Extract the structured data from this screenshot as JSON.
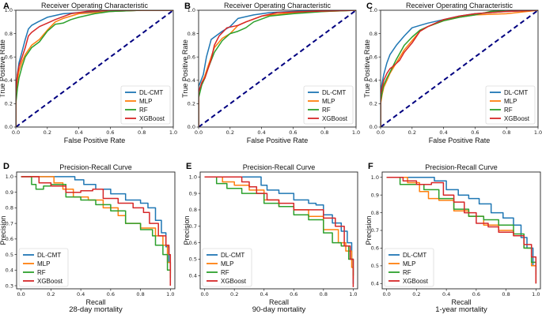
{
  "colors": {
    "DL-CMT": "#1f77b4",
    "MLP": "#ff7f0e",
    "RF": "#2ca02c",
    "XGBoost": "#d62728",
    "diagonal": "#000080"
  },
  "chart_data": [
    {
      "panel": "A",
      "type": "line",
      "title": "Receiver Operating Characteristic",
      "xlabel": "False Positive Rate",
      "ylabel": "True Positive Rate",
      "xlim": [
        0,
        1
      ],
      "ylim": [
        0,
        1
      ],
      "xticks": [
        "0.0",
        "0.2",
        "0.4",
        "0.6",
        "0.8",
        "1.0"
      ],
      "yticks": [
        "0.0",
        "0.2",
        "0.4",
        "0.6",
        "0.8",
        "1.0"
      ],
      "legend": [
        "DL-CMT",
        "MLP",
        "RF",
        "XGBoost"
      ],
      "legend_position": "lower-right",
      "diagonal": true,
      "series": [
        {
          "name": "DL-CMT",
          "x": [
            0,
            0,
            0.01,
            0.02,
            0.04,
            0.06,
            0.08,
            0.1,
            0.14,
            0.2,
            0.3,
            0.4,
            0.6,
            0.8,
            1
          ],
          "y": [
            0,
            0.3,
            0.45,
            0.55,
            0.65,
            0.75,
            0.84,
            0.87,
            0.9,
            0.94,
            0.97,
            0.98,
            0.99,
            1,
            1
          ]
        },
        {
          "name": "MLP",
          "x": [
            0,
            0,
            0.01,
            0.02,
            0.04,
            0.06,
            0.1,
            0.15,
            0.2,
            0.25,
            0.3,
            0.4,
            0.6,
            0.8,
            1
          ],
          "y": [
            0,
            0.25,
            0.4,
            0.48,
            0.56,
            0.62,
            0.7,
            0.75,
            0.83,
            0.9,
            0.93,
            0.97,
            0.99,
            1,
            1
          ]
        },
        {
          "name": "RF",
          "x": [
            0,
            0,
            0.01,
            0.02,
            0.04,
            0.06,
            0.1,
            0.15,
            0.2,
            0.25,
            0.3,
            0.35,
            0.4,
            0.5,
            0.6,
            0.8,
            1
          ],
          "y": [
            0,
            0.2,
            0.33,
            0.42,
            0.52,
            0.6,
            0.68,
            0.73,
            0.82,
            0.88,
            0.89,
            0.92,
            0.94,
            0.97,
            0.99,
            1,
            1
          ]
        },
        {
          "name": "XGBoost",
          "x": [
            0,
            0,
            0.01,
            0.02,
            0.04,
            0.06,
            0.08,
            0.1,
            0.15,
            0.2,
            0.25,
            0.35,
            0.45,
            0.6,
            0.8,
            1
          ],
          "y": [
            0,
            0.3,
            0.45,
            0.52,
            0.6,
            0.68,
            0.78,
            0.81,
            0.86,
            0.89,
            0.92,
            0.97,
            0.99,
            1,
            1,
            1
          ]
        }
      ]
    },
    {
      "panel": "B",
      "type": "line",
      "title": "Receiver Operating Characteristic",
      "xlabel": "False Positive Rate",
      "ylabel": "True Positive Rate",
      "xlim": [
        0,
        1
      ],
      "ylim": [
        0,
        1
      ],
      "xticks": [
        "0.0",
        "0.2",
        "0.4",
        "0.6",
        "0.8",
        "1.0"
      ],
      "yticks": [
        "0.0",
        "0.2",
        "0.4",
        "0.6",
        "0.8",
        "1.0"
      ],
      "legend": [
        "DL-CMT",
        "MLP",
        "RF",
        "XGBoost"
      ],
      "legend_position": "lower-right",
      "diagonal": true,
      "series": [
        {
          "name": "DL-CMT",
          "x": [
            0,
            0,
            0.01,
            0.03,
            0.05,
            0.08,
            0.1,
            0.15,
            0.2,
            0.25,
            0.35,
            0.45,
            0.6,
            0.8,
            1
          ],
          "y": [
            0,
            0.35,
            0.38,
            0.45,
            0.6,
            0.75,
            0.77,
            0.82,
            0.86,
            0.93,
            0.96,
            0.98,
            0.99,
            1,
            1
          ]
        },
        {
          "name": "MLP",
          "x": [
            0,
            0,
            0.02,
            0.04,
            0.06,
            0.08,
            0.1,
            0.15,
            0.2,
            0.25,
            0.3,
            0.4,
            0.6,
            0.8,
            1
          ],
          "y": [
            0,
            0.3,
            0.38,
            0.44,
            0.52,
            0.6,
            0.68,
            0.76,
            0.8,
            0.87,
            0.9,
            0.95,
            0.98,
            0.99,
            1
          ]
        },
        {
          "name": "RF",
          "x": [
            0,
            0,
            0.02,
            0.04,
            0.06,
            0.08,
            0.1,
            0.15,
            0.2,
            0.25,
            0.3,
            0.35,
            0.45,
            0.6,
            0.8,
            1
          ],
          "y": [
            0,
            0.25,
            0.36,
            0.42,
            0.5,
            0.57,
            0.64,
            0.74,
            0.8,
            0.82,
            0.85,
            0.9,
            0.95,
            0.97,
            0.99,
            1
          ]
        },
        {
          "name": "XGBoost",
          "x": [
            0,
            0,
            0.02,
            0.04,
            0.06,
            0.08,
            0.1,
            0.13,
            0.18,
            0.25,
            0.3,
            0.4,
            0.5,
            0.7,
            1
          ],
          "y": [
            0,
            0.3,
            0.38,
            0.42,
            0.5,
            0.58,
            0.7,
            0.78,
            0.85,
            0.87,
            0.9,
            0.95,
            0.98,
            0.99,
            1
          ]
        }
      ]
    },
    {
      "panel": "C",
      "type": "line",
      "title": "Receiver Operating Characteristic",
      "xlabel": "False Positive Rate",
      "ylabel": "True Positive Rate",
      "xlim": [
        0,
        1
      ],
      "ylim": [
        0,
        1
      ],
      "xticks": [
        "0.0",
        "0.2",
        "0.4",
        "0.6",
        "0.8",
        "1.0"
      ],
      "yticks": [
        "0.0",
        "0.2",
        "0.4",
        "0.6",
        "0.8",
        "1.0"
      ],
      "legend": [
        "DL-CMT",
        "MLP",
        "RF",
        "XGBoost"
      ],
      "legend_position": "lower-right",
      "diagonal": true,
      "series": [
        {
          "name": "DL-CMT",
          "x": [
            0,
            0,
            0.01,
            0.02,
            0.04,
            0.06,
            0.08,
            0.1,
            0.15,
            0.2,
            0.25,
            0.3,
            0.4,
            0.5,
            0.6,
            0.8,
            1
          ],
          "y": [
            0,
            0.3,
            0.38,
            0.45,
            0.55,
            0.62,
            0.66,
            0.7,
            0.78,
            0.85,
            0.87,
            0.89,
            0.92,
            0.95,
            0.97,
            0.99,
            1
          ]
        },
        {
          "name": "MLP",
          "x": [
            0,
            0,
            0.01,
            0.02,
            0.04,
            0.06,
            0.1,
            0.15,
            0.2,
            0.25,
            0.3,
            0.4,
            0.5,
            0.6,
            0.8,
            1
          ],
          "y": [
            0,
            0.2,
            0.28,
            0.34,
            0.4,
            0.46,
            0.55,
            0.66,
            0.74,
            0.82,
            0.86,
            0.91,
            0.94,
            0.96,
            0.97,
            1
          ]
        },
        {
          "name": "RF",
          "x": [
            0,
            0,
            0.01,
            0.02,
            0.04,
            0.06,
            0.1,
            0.15,
            0.2,
            0.25,
            0.3,
            0.4,
            0.5,
            0.6,
            0.7,
            0.8,
            1
          ],
          "y": [
            0,
            0.22,
            0.3,
            0.36,
            0.42,
            0.47,
            0.58,
            0.7,
            0.77,
            0.83,
            0.86,
            0.91,
            0.94,
            0.96,
            0.99,
            1,
            1
          ]
        },
        {
          "name": "XGBoost",
          "x": [
            0,
            0,
            0.01,
            0.02,
            0.04,
            0.06,
            0.08,
            0.12,
            0.15,
            0.2,
            0.25,
            0.3,
            0.4,
            0.5,
            0.6,
            0.8,
            1
          ],
          "y": [
            0,
            0.28,
            0.34,
            0.4,
            0.46,
            0.5,
            0.52,
            0.57,
            0.64,
            0.72,
            0.82,
            0.86,
            0.92,
            0.95,
            0.97,
            0.99,
            1
          ]
        }
      ]
    },
    {
      "panel": "D",
      "type": "line",
      "title": "Precision-Recall Curve",
      "xlabel": "Recall",
      "ylabel": "Precision",
      "caption": "28-day mortality",
      "xlim": [
        -0.03,
        1.03
      ],
      "ylim": [
        0.28,
        1.03
      ],
      "xticks": [
        "0.0",
        "0.2",
        "0.4",
        "0.6",
        "0.8",
        "1.0"
      ],
      "yticks": [
        "0.3",
        "0.4",
        "0.5",
        "0.6",
        "0.7",
        "0.8",
        "0.9",
        "1.0"
      ],
      "ytick_values": [
        0.3,
        0.4,
        0.5,
        0.6,
        0.7,
        0.8,
        0.9,
        1.0
      ],
      "legend": [
        "DL-CMT",
        "MLP",
        "RF",
        "XGBoost"
      ],
      "legend_position": "lower-left",
      "series": [
        {
          "name": "DL-CMT",
          "x": [
            0,
            0.32,
            0.36,
            0.42,
            0.5,
            0.6,
            0.7,
            0.8,
            0.85,
            0.9,
            0.94,
            0.97,
            0.99,
            1
          ],
          "y": [
            1,
            1,
            0.98,
            0.95,
            0.92,
            0.89,
            0.85,
            0.83,
            0.8,
            0.72,
            0.64,
            0.55,
            0.45,
            0.4
          ]
        },
        {
          "name": "MLP",
          "x": [
            0,
            0.2,
            0.22,
            0.28,
            0.35,
            0.45,
            0.55,
            0.65,
            0.7,
            0.8,
            0.9,
            0.95,
            0.98,
            1
          ],
          "y": [
            1,
            1,
            0.96,
            0.92,
            0.87,
            0.85,
            0.8,
            0.75,
            0.7,
            0.67,
            0.62,
            0.56,
            0.45,
            0.38
          ]
        },
        {
          "name": "RF",
          "x": [
            0,
            0.07,
            0.07,
            0.1,
            0.15,
            0.2,
            0.3,
            0.4,
            0.5,
            0.6,
            0.7,
            0.8,
            0.88,
            0.9,
            0.95,
            0.98,
            1
          ],
          "y": [
            1,
            1,
            0.95,
            0.92,
            0.94,
            0.95,
            0.87,
            0.85,
            0.82,
            0.78,
            0.7,
            0.66,
            0.62,
            0.56,
            0.5,
            0.4,
            0.35
          ]
        },
        {
          "name": "XGBoost",
          "x": [
            0,
            0.12,
            0.12,
            0.2,
            0.3,
            0.4,
            0.48,
            0.55,
            0.65,
            0.75,
            0.82,
            0.86,
            0.92,
            0.97,
            0.99,
            1
          ],
          "y": [
            1,
            1,
            0.96,
            0.94,
            0.9,
            0.91,
            0.92,
            0.86,
            0.83,
            0.8,
            0.77,
            0.7,
            0.62,
            0.56,
            0.5,
            0.3
          ]
        }
      ]
    },
    {
      "panel": "E",
      "type": "line",
      "title": "Precision-Recall Curve",
      "xlabel": "Recall",
      "ylabel": "Precision",
      "caption": "90-day mortality",
      "xlim": [
        -0.03,
        1.03
      ],
      "ylim": [
        0.32,
        1.03
      ],
      "xticks": [
        "0.0",
        "0.2",
        "0.4",
        "0.6",
        "0.8",
        "1.0"
      ],
      "yticks": [
        "0.4",
        "0.5",
        "0.6",
        "0.7",
        "0.8",
        "0.9",
        "1.0"
      ],
      "ytick_values": [
        0.4,
        0.5,
        0.6,
        0.7,
        0.8,
        0.9,
        1.0
      ],
      "legend": [
        "DL-CMT",
        "MLP",
        "RF",
        "XGBoost"
      ],
      "legend_position": "lower-left",
      "series": [
        {
          "name": "DL-CMT",
          "x": [
            0,
            0.34,
            0.38,
            0.42,
            0.5,
            0.6,
            0.7,
            0.75,
            0.8,
            0.86,
            0.92,
            0.96,
            0.99,
            1
          ],
          "y": [
            1,
            1,
            0.95,
            0.92,
            0.9,
            0.86,
            0.84,
            0.83,
            0.77,
            0.72,
            0.67,
            0.6,
            0.5,
            0.35
          ]
        },
        {
          "name": "MLP",
          "x": [
            0,
            0.12,
            0.12,
            0.2,
            0.3,
            0.4,
            0.5,
            0.6,
            0.7,
            0.8,
            0.9,
            0.95,
            0.99,
            1
          ],
          "y": [
            1,
            1,
            0.97,
            0.95,
            0.92,
            0.86,
            0.82,
            0.8,
            0.76,
            0.68,
            0.6,
            0.55,
            0.45,
            0.38
          ]
        },
        {
          "name": "RF",
          "x": [
            0,
            0.08,
            0.08,
            0.15,
            0.25,
            0.35,
            0.4,
            0.5,
            0.6,
            0.7,
            0.8,
            0.86,
            0.92,
            0.97,
            1
          ],
          "y": [
            1,
            1,
            0.96,
            0.93,
            0.9,
            0.9,
            0.84,
            0.82,
            0.77,
            0.74,
            0.66,
            0.6,
            0.58,
            0.5,
            0.4
          ]
        },
        {
          "name": "XGBoost",
          "x": [
            0,
            0.22,
            0.25,
            0.3,
            0.35,
            0.42,
            0.5,
            0.6,
            0.7,
            0.8,
            0.88,
            0.94,
            0.98,
            1
          ],
          "y": [
            1,
            1,
            0.97,
            0.94,
            0.9,
            0.86,
            0.84,
            0.8,
            0.8,
            0.75,
            0.7,
            0.58,
            0.5,
            0.33
          ]
        }
      ]
    },
    {
      "panel": "F",
      "type": "line",
      "title": "Precision-Recall Curve",
      "xlabel": "Recall",
      "ylabel": "Precision",
      "caption": "1-year mortality",
      "xlim": [
        -0.03,
        1.03
      ],
      "ylim": [
        0.37,
        1.03
      ],
      "xticks": [
        "0.0",
        "0.2",
        "0.4",
        "0.6",
        "0.8",
        "1.0"
      ],
      "yticks": [
        "0.4",
        "0.5",
        "0.6",
        "0.7",
        "0.8",
        "0.9",
        "1.0"
      ],
      "ytick_values": [
        0.4,
        0.5,
        0.6,
        0.7,
        0.8,
        0.9,
        1.0
      ],
      "legend": [
        "DL-CMT",
        "MLP",
        "RF",
        "XGBoost"
      ],
      "legend_position": "lower-left",
      "series": [
        {
          "name": "DL-CMT",
          "x": [
            0,
            0.27,
            0.32,
            0.4,
            0.48,
            0.55,
            0.62,
            0.7,
            0.78,
            0.85,
            0.9,
            0.94,
            0.98,
            1
          ],
          "y": [
            1,
            1,
            0.98,
            0.93,
            0.9,
            0.88,
            0.85,
            0.8,
            0.77,
            0.73,
            0.66,
            0.6,
            0.5,
            0.4
          ]
        },
        {
          "name": "MLP",
          "x": [
            0,
            0.14,
            0.14,
            0.22,
            0.28,
            0.35,
            0.45,
            0.55,
            0.65,
            0.75,
            0.85,
            0.92,
            0.97,
            1
          ],
          "y": [
            1,
            1,
            0.97,
            0.92,
            0.88,
            0.87,
            0.81,
            0.78,
            0.73,
            0.7,
            0.67,
            0.6,
            0.5,
            0.4
          ]
        },
        {
          "name": "RF",
          "x": [
            0,
            0.08,
            0.09,
            0.15,
            0.25,
            0.35,
            0.45,
            0.55,
            0.65,
            0.75,
            0.85,
            0.92,
            0.97,
            1
          ],
          "y": [
            1,
            1,
            0.96,
            0.96,
            0.93,
            0.88,
            0.82,
            0.78,
            0.76,
            0.73,
            0.68,
            0.6,
            0.52,
            0.45
          ]
        },
        {
          "name": "XGBoost",
          "x": [
            0,
            0.11,
            0.11,
            0.2,
            0.3,
            0.38,
            0.45,
            0.52,
            0.6,
            0.68,
            0.75,
            0.85,
            0.92,
            0.97,
            1
          ],
          "y": [
            1,
            1,
            0.98,
            0.96,
            0.97,
            0.9,
            0.86,
            0.8,
            0.74,
            0.72,
            0.69,
            0.67,
            0.62,
            0.55,
            0.4
          ]
        }
      ]
    }
  ]
}
